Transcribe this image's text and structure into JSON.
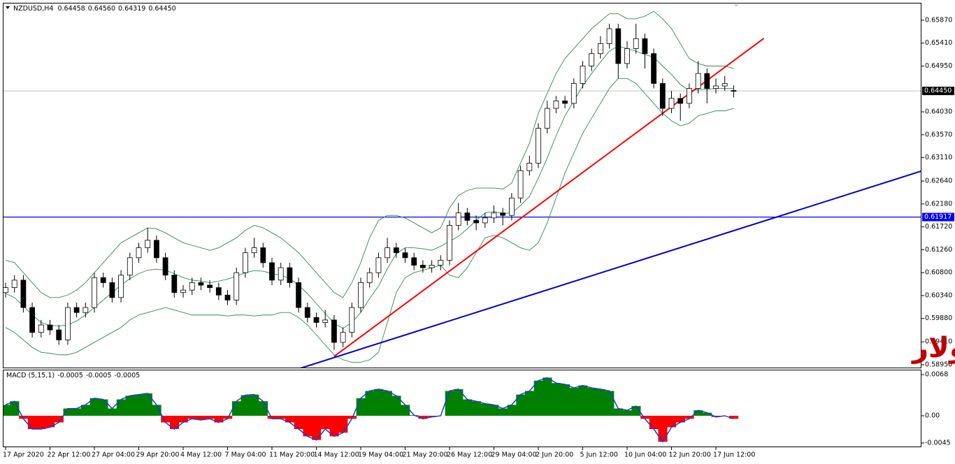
{
  "chart_data": [
    {
      "type": "candlestick",
      "symbol": "NZDUSD,H4",
      "ohlc_readout": [
        0.64458,
        {
          "value": 0.6456,
          "label": "0.64560"
        },
        0.64319,
        {
          "value": 0.6445,
          "label": "0.64450"
        }
      ],
      "categories": [
        "17 Apr 2020",
        null,
        null,
        null,
        null,
        "22 Apr 12:00",
        null,
        null,
        null,
        null,
        "27 Apr 04:00",
        null,
        null,
        null,
        null,
        "29 Apr 20:00",
        null,
        null,
        null,
        null,
        "4 May 12:00",
        null,
        null,
        null,
        null,
        "7 May 04:00",
        null,
        null,
        null,
        null,
        "11 May 20:00",
        null,
        null,
        null,
        null,
        "14 May 12:00",
        null,
        null,
        null,
        null,
        "19 May 04:00",
        null,
        null,
        null,
        null,
        "21 May 20:00",
        null,
        null,
        null,
        null,
        "26 May 12:00",
        null,
        null,
        null,
        null,
        "29 May 04:00",
        null,
        null,
        null,
        null,
        "2 Jun 20:00",
        null,
        null,
        null,
        null,
        "5 Jun 12:00",
        null,
        null,
        null,
        null,
        "10 Jun 04:00",
        null,
        null,
        null,
        null,
        "12 Jun 20:00",
        null,
        null,
        null,
        null,
        "17 Jun 12:00",
        null,
        null
      ],
      "open": [
        0.604,
        0.605,
        0.6065,
        0.601,
        0.596,
        0.5975,
        0.5965,
        0.5945,
        0.601,
        0.6,
        0.601,
        0.607,
        0.606,
        0.603,
        0.6075,
        0.611,
        0.613,
        0.6145,
        0.611,
        0.6075,
        0.604,
        0.6045,
        0.606,
        0.6055,
        0.605,
        0.6035,
        0.6025,
        0.608,
        0.612,
        0.613,
        0.61,
        0.6065,
        0.609,
        0.606,
        0.601,
        0.599,
        0.598,
        0.5985,
        0.594,
        0.596,
        0.601,
        0.606,
        0.608,
        0.611,
        0.613,
        0.612,
        0.611,
        0.6095,
        0.609,
        0.6095,
        0.6105,
        0.6175,
        0.62,
        0.6185,
        0.618,
        0.619,
        0.62,
        0.6195,
        0.623,
        0.6285,
        0.63,
        0.637,
        0.641,
        0.6425,
        0.642,
        0.646,
        0.6495,
        0.652,
        0.654,
        0.657,
        0.65,
        0.653,
        0.655,
        0.652,
        0.646,
        0.641,
        0.643,
        0.642,
        0.645,
        0.648,
        0.645,
        0.6455,
        0.64458
      ],
      "high": [
        0.606,
        0.6075,
        0.6075,
        0.602,
        0.5985,
        0.5985,
        0.5975,
        0.602,
        0.602,
        0.602,
        0.608,
        0.608,
        0.607,
        0.6085,
        0.612,
        0.614,
        0.617,
        0.6155,
        0.612,
        0.6085,
        0.6055,
        0.607,
        0.607,
        0.6065,
        0.606,
        0.6045,
        0.609,
        0.613,
        0.615,
        0.614,
        0.611,
        0.61,
        0.61,
        0.607,
        0.602,
        0.6,
        0.6005,
        0.5995,
        0.597,
        0.602,
        0.607,
        0.609,
        0.612,
        0.615,
        0.614,
        0.613,
        0.612,
        0.6105,
        0.6105,
        0.6115,
        0.6185,
        0.622,
        0.621,
        0.6195,
        0.62,
        0.6215,
        0.621,
        0.624,
        0.6295,
        0.6315,
        0.638,
        0.6425,
        0.6435,
        0.6435,
        0.647,
        0.6505,
        0.653,
        0.6555,
        0.658,
        0.658,
        0.6545,
        0.658,
        0.656,
        0.653,
        0.647,
        0.6445,
        0.644,
        0.646,
        0.6505,
        0.649,
        0.647,
        0.6475,
        0.6456
      ],
      "low": [
        0.603,
        0.604,
        0.6,
        0.595,
        0.595,
        0.5955,
        0.5935,
        0.5935,
        0.599,
        0.599,
        0.6,
        0.605,
        0.602,
        0.602,
        0.6065,
        0.61,
        0.612,
        0.61,
        0.6065,
        0.603,
        0.603,
        0.6035,
        0.6045,
        0.604,
        0.6025,
        0.6015,
        0.6015,
        0.607,
        0.611,
        0.609,
        0.6055,
        0.6055,
        0.605,
        0.6,
        0.598,
        0.597,
        0.597,
        0.5925,
        0.593,
        0.595,
        0.6,
        0.605,
        0.607,
        0.61,
        0.611,
        0.61,
        0.6085,
        0.608,
        0.608,
        0.6085,
        0.6095,
        0.6165,
        0.6175,
        0.6165,
        0.617,
        0.618,
        0.6175,
        0.6185,
        0.622,
        0.6275,
        0.629,
        0.636,
        0.64,
        0.641,
        0.641,
        0.645,
        0.6485,
        0.651,
        0.653,
        0.647,
        0.649,
        0.652,
        0.649,
        0.645,
        0.6395,
        0.64,
        0.6385,
        0.641,
        0.644,
        0.642,
        0.644,
        0.6445,
        0.64319
      ],
      "close": [
        0.605,
        0.6065,
        0.601,
        0.596,
        0.5975,
        0.5965,
        0.5945,
        0.601,
        0.6,
        0.601,
        0.607,
        0.606,
        0.603,
        0.6075,
        0.611,
        0.613,
        0.6145,
        0.611,
        0.6075,
        0.604,
        0.6045,
        0.606,
        0.6055,
        0.605,
        0.6035,
        0.6025,
        0.608,
        0.612,
        0.613,
        0.61,
        0.6065,
        0.609,
        0.606,
        0.601,
        0.599,
        0.598,
        0.5985,
        0.594,
        0.596,
        0.601,
        0.606,
        0.608,
        0.611,
        0.613,
        0.612,
        0.611,
        0.6095,
        0.609,
        0.6095,
        0.6105,
        0.6175,
        0.62,
        0.6185,
        0.618,
        0.619,
        0.62,
        0.6195,
        0.623,
        0.6285,
        0.63,
        0.637,
        0.641,
        0.6425,
        0.642,
        0.646,
        0.6495,
        0.652,
        0.654,
        0.657,
        0.65,
        0.653,
        0.655,
        0.652,
        0.646,
        0.641,
        0.643,
        0.642,
        0.645,
        0.648,
        0.645,
        0.6455,
        0.646,
        0.6445
      ],
      "bollinger": {
        "color": "#2e8b57",
        "upper": [
          0.6105,
          0.61,
          0.608,
          0.606,
          0.604,
          0.603,
          0.603,
          0.6035,
          0.6045,
          0.606,
          0.608,
          0.61,
          0.612,
          0.614,
          0.615,
          0.616,
          0.617,
          0.6168,
          0.616,
          0.615,
          0.614,
          0.6135,
          0.613,
          0.6125,
          0.613,
          0.614,
          0.615,
          0.6165,
          0.6175,
          0.617,
          0.616,
          0.615,
          0.6135,
          0.612,
          0.61,
          0.608,
          0.606,
          0.604,
          0.603,
          0.606,
          0.61,
          0.615,
          0.6185,
          0.6195,
          0.6195,
          0.619,
          0.618,
          0.617,
          0.616,
          0.617,
          0.621,
          0.6235,
          0.6245,
          0.625,
          0.625,
          0.625,
          0.6248,
          0.626,
          0.63,
          0.634,
          0.64,
          0.644,
          0.648,
          0.651,
          0.653,
          0.655,
          0.657,
          0.6585,
          0.66,
          0.66,
          0.659,
          0.659,
          0.6595,
          0.6605,
          0.659,
          0.657,
          0.654,
          0.651,
          0.65,
          0.6495,
          0.6495,
          0.6495,
          0.649
        ],
        "middle": [
          0.6038,
          0.603,
          0.6013,
          0.5995,
          0.598,
          0.5974,
          0.5973,
          0.5975,
          0.5983,
          0.5995,
          0.601,
          0.6025,
          0.604,
          0.6055,
          0.6068,
          0.6078,
          0.6085,
          0.6087,
          0.6085,
          0.6078,
          0.607,
          0.6065,
          0.6063,
          0.606,
          0.6063,
          0.6067,
          0.6073,
          0.608,
          0.6084,
          0.6083,
          0.6078,
          0.6075,
          0.6068,
          0.6055,
          0.6038,
          0.6018,
          0.5998,
          0.5978,
          0.5968,
          0.598,
          0.6,
          0.6028,
          0.6053,
          0.6088,
          0.6118,
          0.613,
          0.613,
          0.6128,
          0.6125,
          0.6133,
          0.6143,
          0.6153,
          0.6168,
          0.6185,
          0.62,
          0.6203,
          0.6199,
          0.62,
          0.6215,
          0.6233,
          0.627,
          0.631,
          0.6355,
          0.6395,
          0.6425,
          0.6455,
          0.648,
          0.6503,
          0.6525,
          0.6535,
          0.653,
          0.6525,
          0.6518,
          0.6513,
          0.6495,
          0.6478,
          0.6458,
          0.6445,
          0.6448,
          0.6448,
          0.645,
          0.645,
          0.645
        ],
        "lower": [
          0.597,
          0.596,
          0.5945,
          0.593,
          0.592,
          0.5918,
          0.5915,
          0.5915,
          0.592,
          0.593,
          0.594,
          0.595,
          0.596,
          0.597,
          0.5985,
          0.5995,
          0.6,
          0.6005,
          0.601,
          0.6005,
          0.6,
          0.5995,
          0.5995,
          0.5995,
          0.5995,
          0.5993,
          0.5995,
          0.5995,
          0.5993,
          0.5995,
          0.5995,
          0.6,
          0.6,
          0.599,
          0.5975,
          0.5955,
          0.5935,
          0.5915,
          0.5905,
          0.59,
          0.59,
          0.5905,
          0.592,
          0.598,
          0.604,
          0.607,
          0.608,
          0.6085,
          0.609,
          0.6095,
          0.6075,
          0.607,
          0.609,
          0.612,
          0.615,
          0.6155,
          0.615,
          0.614,
          0.613,
          0.6125,
          0.614,
          0.618,
          0.623,
          0.628,
          0.632,
          0.636,
          0.639,
          0.642,
          0.645,
          0.647,
          0.647,
          0.646,
          0.644,
          0.642,
          0.64,
          0.6385,
          0.6375,
          0.638,
          0.6395,
          0.64,
          0.6405,
          0.6405,
          0.641
        ]
      },
      "ylim": [
        0.5888,
        0.6622
      ],
      "yticks": [
        {
          "value": 0.6587,
          "label": "0.65870"
        },
        {
          "value": 0.6541,
          "label": "0.65410"
        },
        {
          "value": 0.6495,
          "label": "0.64950"
        },
        {
          "value": 0.6403,
          "label": "0.64030"
        },
        {
          "value": 0.6357,
          "label": "0.63570"
        },
        {
          "value": 0.6311,
          "label": "0.63110"
        },
        {
          "value": 0.6264,
          "label": "0.62640"
        },
        {
          "value": 0.6218,
          "label": "0.62180"
        },
        {
          "value": 0.6172,
          "label": "0.61720"
        },
        {
          "value": 0.6126,
          "label": "0.61260"
        },
        {
          "value": 0.608,
          "label": "0.60800"
        },
        {
          "value": 0.6034,
          "label": "0.60340"
        },
        {
          "value": 0.5988,
          "label": "0.59880"
        },
        {
          "value": 0.5941,
          "label": "0.59410"
        },
        {
          "value": 0.5895,
          "label": "0.58950"
        }
      ],
      "current_price": {
        "value": 0.6445,
        "label": "0.64450"
      },
      "level": {
        "value": 0.61917,
        "color": "#0000ff"
      },
      "trendlines": [
        {
          "color": "#ff0000",
          "start": [
            37,
            0.59118
          ],
          "end": [
            85.4,
            0.65505
          ]
        },
        {
          "color": "#0000cc",
          "start": [
            33.2,
            0.5888
          ],
          "end": [
            103.1,
            0.62838
          ]
        }
      ],
      "annotation": "نيوزلندي دولار"
    },
    {
      "type": "macd",
      "name": "MACD (5,15,1)",
      "readout": [
        -0.0005,
        -0.0005,
        -0.0005
      ],
      "values": [
        0.0018,
        0.0024,
        -0.0005,
        -0.0022,
        -0.0022,
        -0.0019,
        -0.0011,
        0.0012,
        0.0012,
        0.0018,
        0.0029,
        0.0027,
        0.0012,
        0.0027,
        0.0033,
        0.0035,
        0.0037,
        0.0018,
        -0.0011,
        -0.0022,
        -0.0011,
        -0.0005,
        -0.0007,
        -0.0005,
        -0.0011,
        -0.0005,
        0.0024,
        0.0034,
        0.0035,
        0.0024,
        -0.0005,
        -0.0005,
        -0.0011,
        -0.0022,
        -0.0034,
        -0.004,
        -0.0022,
        -0.0034,
        -0.0028,
        -0.0005,
        0.0029,
        0.0041,
        0.0044,
        0.0041,
        0.0033,
        0.0018,
        0.0001,
        -0.0005,
        -0.0002,
        0,
        0.0041,
        0.0044,
        0.0027,
        0.0024,
        0.002,
        0.0018,
        0.0012,
        0.0018,
        0.0035,
        0.0041,
        0.0058,
        0.0063,
        0.0054,
        0.0052,
        0.0046,
        0.005,
        0.0046,
        0.0044,
        0.0041,
        0.0012,
        0.0009,
        0.0016,
        -0.0005,
        -0.0022,
        -0.0043,
        -0.0019,
        -0.0011,
        -0.0005,
        0.0009,
        0.0005,
        -0.0002,
        0,
        -0.0005
      ],
      "positive_color": "#008000",
      "negative_color": "#ff0000",
      "outline_color": "#1e3cd2",
      "ylim": [
        -0.0052,
        0.0075
      ],
      "yticks": [
        0.0068,
        {
          "value": 0,
          "label": "0.00"
        },
        -0.0045
      ]
    }
  ]
}
